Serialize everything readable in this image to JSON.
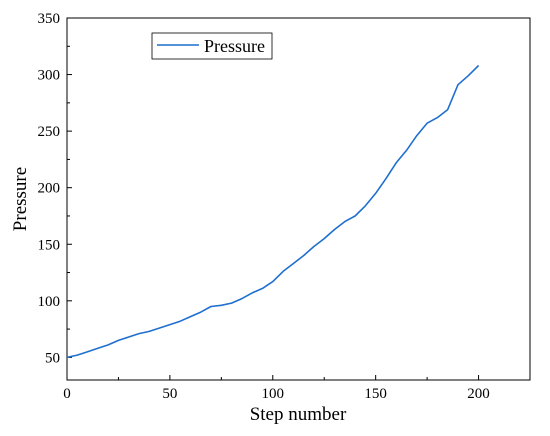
{
  "chart_data": {
    "type": "line",
    "title": "",
    "xlabel": "Step number",
    "ylabel": "Pressure",
    "xlim": [
      0,
      225
    ],
    "ylim": [
      30,
      350
    ],
    "xticks": [
      0,
      50,
      100,
      150,
      200
    ],
    "yticks": [
      50,
      100,
      150,
      200,
      250,
      300,
      350
    ],
    "grid": false,
    "legend_position": "top-left",
    "series": [
      {
        "name": "Pressure",
        "color": "#1f6fd0",
        "x": [
          0,
          5,
          10,
          15,
          20,
          25,
          30,
          35,
          40,
          45,
          50,
          55,
          60,
          65,
          70,
          75,
          80,
          85,
          90,
          95,
          100,
          105,
          110,
          115,
          120,
          125,
          130,
          135,
          140,
          145,
          150,
          155,
          160,
          165,
          170,
          175,
          180,
          185,
          190,
          195,
          200
        ],
        "values": [
          50,
          52,
          55,
          58,
          61,
          65,
          68,
          71,
          73,
          76,
          79,
          82,
          86,
          90,
          95,
          96,
          98,
          102,
          107,
          111,
          117,
          126,
          133,
          140,
          148,
          155,
          163,
          170,
          175,
          184,
          195,
          208,
          222,
          233,
          246,
          257,
          262,
          269,
          291,
          299,
          308
        ]
      }
    ]
  }
}
